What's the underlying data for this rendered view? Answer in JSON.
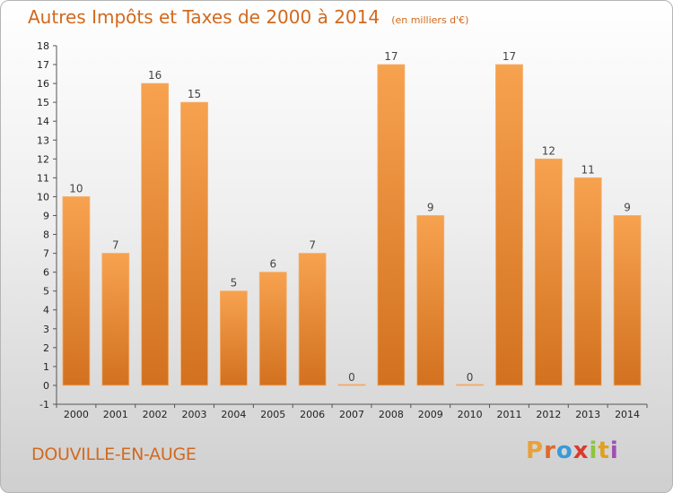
{
  "chart_data": {
    "type": "bar",
    "title": "Autres Impôts et Taxes de 2000 à 2014",
    "subtitle": "(en milliers d'€)",
    "categories": [
      "2000",
      "2001",
      "2002",
      "2003",
      "2004",
      "2005",
      "2006",
      "2007",
      "2008",
      "2009",
      "2010",
      "2011",
      "2012",
      "2013",
      "2014"
    ],
    "values": [
      10,
      7,
      16,
      15,
      5,
      6,
      7,
      0,
      17,
      9,
      0,
      17,
      12,
      11,
      9
    ],
    "ylim": [
      -1,
      18
    ],
    "yticks": [
      -1,
      0,
      1,
      2,
      3,
      4,
      5,
      6,
      7,
      8,
      9,
      10,
      11,
      12,
      13,
      14,
      15,
      16,
      17,
      18
    ],
    "grid": false,
    "bar_color_top": "#f7a24f",
    "bar_color_bottom": "#d2711f"
  },
  "footer": {
    "place": "DOUVILLE-EN-AUGE",
    "logo": "Proxiti",
    "logo_colors": [
      "#e8a13a",
      "#e06a2a",
      "#3a9ad9",
      "#d83b2e",
      "#8cc63e",
      "#e0a020",
      "#a04fb5"
    ]
  }
}
